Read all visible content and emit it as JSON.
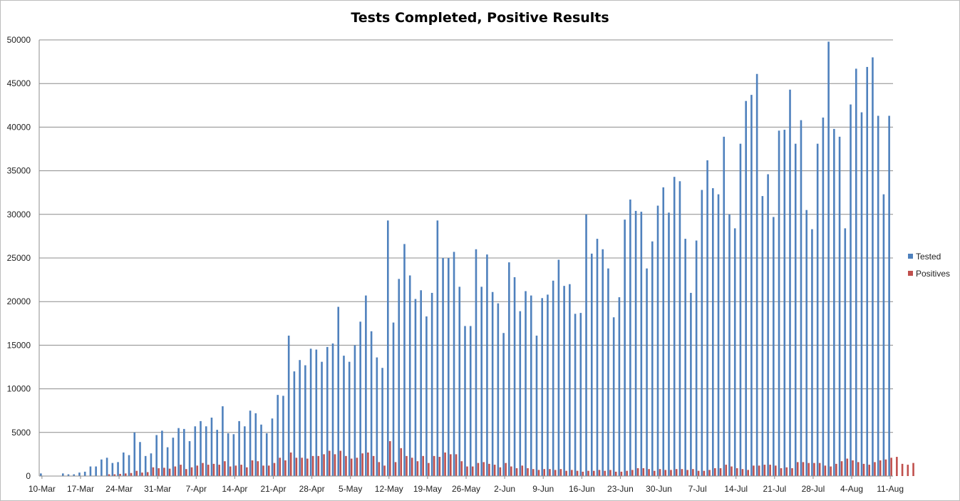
{
  "chart_data": {
    "type": "bar",
    "title": "Tests Completed, Positive Results",
    "xlabel": "",
    "ylabel": "",
    "ylim": [
      0,
      50000
    ],
    "yticks": [
      0,
      5000,
      10000,
      15000,
      20000,
      25000,
      30000,
      35000,
      40000,
      45000,
      50000
    ],
    "grid": true,
    "legend_position": "right",
    "x_start": "10-Mar",
    "x_ticks": [
      "10-Mar",
      "17-Mar",
      "24-Mar",
      "31-Mar",
      "7-Apr",
      "14-Apr",
      "21-Apr",
      "28-Apr",
      "5-May",
      "12-May",
      "19-May",
      "26-May",
      "2-Jun",
      "9-Jun",
      "16-Jun",
      "23-Jun",
      "30-Jun",
      "7-Jul",
      "14-Jul",
      "21-Jul",
      "28-Jul",
      "4-Aug",
      "11-Aug"
    ],
    "series": [
      {
        "name": "Tested",
        "color": "#4f81bd",
        "values": [
          300,
          0,
          0,
          0,
          300,
          200,
          200,
          400,
          500,
          1100,
          1100,
          1900,
          2100,
          1500,
          1600,
          2700,
          2400,
          5000,
          3900,
          2300,
          2600,
          4700,
          5200,
          3300,
          4400,
          5500,
          5400,
          4000,
          5700,
          6300,
          5700,
          6700,
          5300,
          8000,
          4900,
          4800,
          6300,
          5700,
          7500,
          7200,
          5900,
          4900,
          6600,
          9300,
          9200,
          16100,
          12000,
          13300,
          12700,
          14600,
          14500,
          13100,
          14800,
          15200,
          19400,
          13800,
          13100,
          15000,
          17700,
          20700,
          16600,
          13600,
          12400,
          29300,
          17600,
          22600,
          26600,
          23000,
          20300,
          21300,
          18300,
          21000,
          29300,
          25000,
          25000,
          25700,
          21700,
          17200,
          17200,
          26000,
          21700,
          25400,
          21100,
          19800,
          16400,
          24500,
          22800,
          18900,
          21200,
          20700,
          16100,
          20400,
          20800,
          22400,
          24800,
          21800,
          22000,
          18600,
          18700,
          30000,
          25500,
          27200,
          26000,
          23800,
          18200,
          20500,
          29400,
          31700,
          30400,
          30300,
          23800,
          26900,
          31000,
          33100,
          30200,
          34300,
          33800,
          27200,
          21000,
          27000,
          32800,
          36200,
          33000,
          32300,
          38900,
          30000,
          28400,
          38100,
          43000,
          43700,
          46100,
          32100,
          34600,
          29700,
          39600,
          39700,
          44300,
          38100,
          40800,
          30500,
          28300,
          38100,
          41100,
          49800,
          39800,
          38900,
          28400,
          42600,
          46700,
          41700,
          46900,
          48000,
          41300,
          32300,
          41300
        ]
      },
      {
        "name": "Positives",
        "color": "#c0504d",
        "values": [
          0,
          0,
          0,
          0,
          0,
          0,
          0,
          0,
          0,
          0,
          0,
          0,
          200,
          200,
          250,
          300,
          350,
          600,
          400,
          450,
          1000,
          900,
          950,
          850,
          1100,
          1300,
          800,
          1000,
          1200,
          1500,
          1300,
          1400,
          1300,
          1700,
          1100,
          1200,
          1300,
          1000,
          1800,
          1700,
          1200,
          1200,
          1500,
          2100,
          1800,
          2700,
          2100,
          2100,
          2000,
          2300,
          2300,
          2500,
          2900,
          2500,
          2900,
          2300,
          2000,
          2100,
          2600,
          2700,
          2300,
          1600,
          1200,
          4000,
          1600,
          3200,
          2300,
          2100,
          1700,
          2300,
          1500,
          2300,
          2200,
          2700,
          2500,
          2500,
          1700,
          1100,
          1100,
          1500,
          1600,
          1400,
          1300,
          1000,
          1500,
          1100,
          900,
          1200,
          900,
          800,
          700,
          800,
          800,
          700,
          800,
          600,
          700,
          600,
          500,
          600,
          600,
          700,
          600,
          700,
          500,
          500,
          600,
          700,
          900,
          900,
          800,
          600,
          800,
          700,
          700,
          800,
          800,
          700,
          800,
          600,
          600,
          700,
          900,
          900,
          1300,
          1100,
          900,
          800,
          700,
          1200,
          1200,
          1300,
          1300,
          1200,
          900,
          1000,
          900,
          1600,
          1600,
          1500,
          1500,
          1500,
          1200,
          1100,
          1400,
          1700,
          2000,
          1800,
          1600,
          1400,
          1300,
          1600,
          1800,
          1900,
          2100,
          2200,
          1400,
          1300,
          1500
        ]
      }
    ]
  }
}
